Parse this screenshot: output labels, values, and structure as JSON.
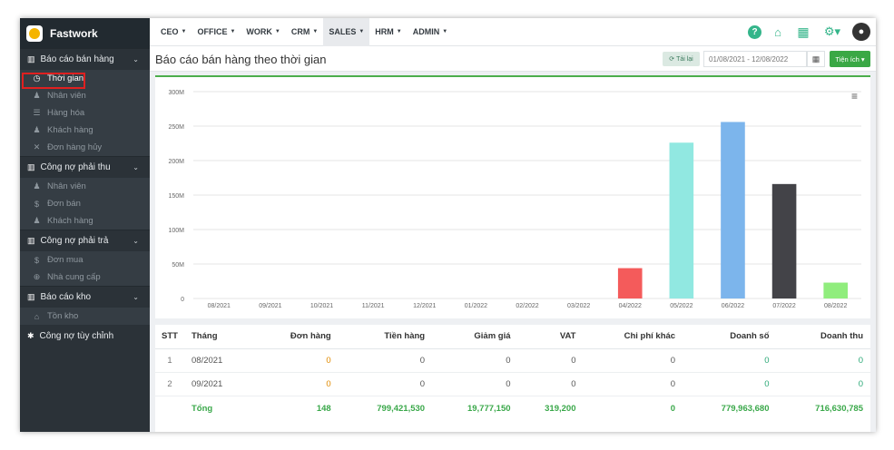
{
  "brand": {
    "name": "Fastwork"
  },
  "sidebar": {
    "sections": [
      {
        "label": "Báo cáo bán hàng",
        "items": [
          "Thời gian",
          "Nhân viên",
          "Hàng hóa",
          "Khách hàng",
          "Đơn hàng hủy"
        ]
      },
      {
        "label": "Công nợ phải thu",
        "items": [
          "Nhân viên",
          "Đơn bán",
          "Khách hàng"
        ]
      },
      {
        "label": "Công nợ phải trả",
        "items": [
          "Đơn mua",
          "Nhà cung cấp"
        ]
      },
      {
        "label": "Báo cáo kho",
        "items": [
          "Tồn kho"
        ]
      }
    ],
    "extra": "Công nợ tùy chỉnh"
  },
  "topnav": {
    "items": [
      "CEO",
      "OFFICE",
      "WORK",
      "CRM",
      "SALES",
      "HRM",
      "ADMIN"
    ],
    "active": "SALES"
  },
  "page": {
    "title": "Báo cáo bán hàng theo thời gian",
    "reload_label": "Tải lại",
    "date_range": "01/08/2021 - 12/08/2022",
    "tools_label": "Tiện ích"
  },
  "chart_data": {
    "type": "bar",
    "categories": [
      "08/2021",
      "09/2021",
      "10/2021",
      "11/2021",
      "12/2021",
      "01/2022",
      "02/2022",
      "03/2022",
      "04/2022",
      "05/2022",
      "06/2022",
      "07/2022",
      "08/2022"
    ],
    "values": [
      0,
      0,
      0,
      0,
      0,
      0,
      0,
      0,
      44000000,
      226000000,
      256000000,
      166000000,
      23000000
    ],
    "colors": [
      "#7cb5ec",
      "#7cb5ec",
      "#7cb5ec",
      "#7cb5ec",
      "#7cb5ec",
      "#7cb5ec",
      "#7cb5ec",
      "#7cb5ec",
      "#f45b5b",
      "#91e8e1",
      "#7cb5ec",
      "#434348",
      "#90ed7d"
    ],
    "yticks": [
      "0",
      "50M",
      "100M",
      "150M",
      "200M",
      "250M",
      "300M"
    ],
    "ylim": [
      0,
      300000000
    ],
    "grid": true,
    "legend": "none"
  },
  "table": {
    "headers": [
      "STT",
      "Tháng",
      "Đơn hàng",
      "Tiền hàng",
      "Giảm giá",
      "VAT",
      "Chi phí khác",
      "Doanh số",
      "Doanh thu"
    ],
    "rows": [
      [
        "1",
        "08/2021",
        "0",
        "0",
        "0",
        "0",
        "0",
        "0",
        "0"
      ],
      [
        "2",
        "09/2021",
        "0",
        "0",
        "0",
        "0",
        "0",
        "0",
        "0"
      ]
    ],
    "total": [
      "Tổng",
      "148",
      "799,421,530",
      "19,777,150",
      "319,200",
      "0",
      "779,963,680",
      "716,630,785"
    ]
  }
}
